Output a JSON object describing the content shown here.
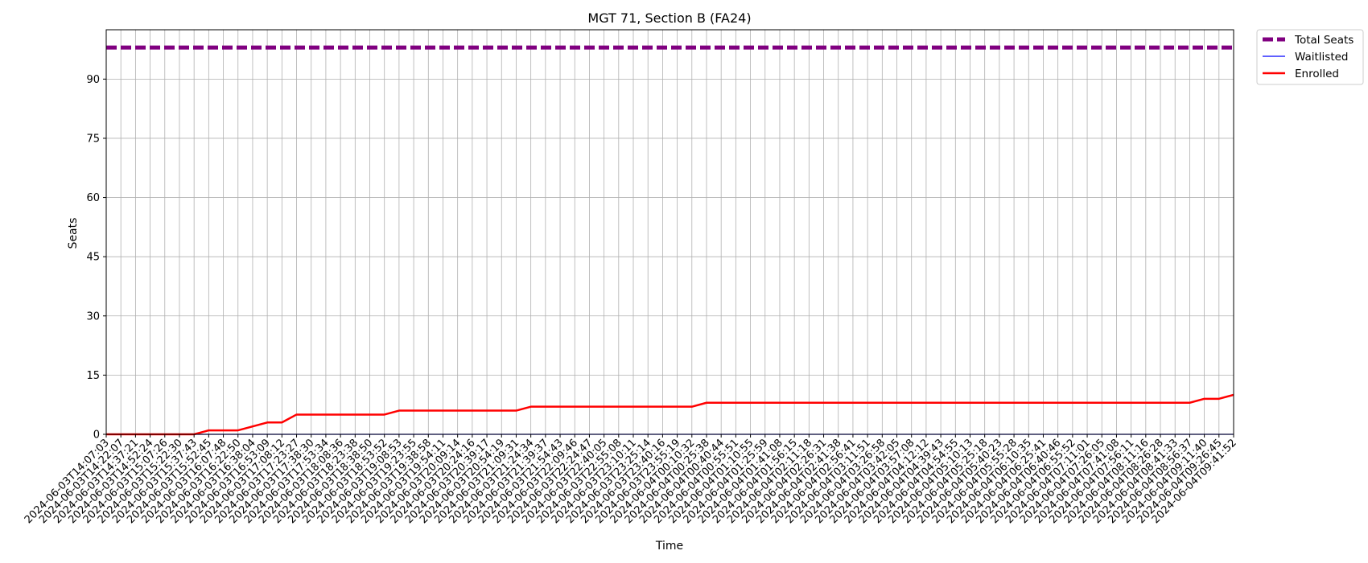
{
  "chart_data": {
    "type": "line",
    "title": "MGT 71, Section B (FA24)",
    "xlabel": "Time",
    "ylabel": "Seats",
    "ylim": [
      0,
      102.5
    ],
    "yticks": [
      0,
      15,
      30,
      45,
      60,
      75,
      90
    ],
    "grid": true,
    "legend_position": "outside-top-right",
    "x": [
      "2024-06-03T14:07:03",
      "2024-06-03T14:22:07",
      "2024-06-03T14:37:21",
      "2024-06-03T14:52:24",
      "2024-06-03T15:07:26",
      "2024-06-03T15:22:30",
      "2024-06-03T15:37:43",
      "2024-06-03T15:52:45",
      "2024-06-03T16:07:48",
      "2024-06-03T16:22:50",
      "2024-06-03T16:38:04",
      "2024-06-03T16:53:09",
      "2024-06-03T17:08:12",
      "2024-06-03T17:23:27",
      "2024-06-03T17:38:30",
      "2024-06-03T17:53:34",
      "2024-06-03T18:08:36",
      "2024-06-03T18:23:38",
      "2024-06-03T18:38:50",
      "2024-06-03T18:53:52",
      "2024-06-03T19:08:53",
      "2024-06-03T19:23:55",
      "2024-06-03T19:38:58",
      "2024-06-03T19:54:11",
      "2024-06-03T20:09:14",
      "2024-06-03T20:24:16",
      "2024-06-03T20:39:17",
      "2024-06-03T20:54:19",
      "2024-06-03T21:09:31",
      "2024-06-03T21:24:34",
      "2024-06-03T21:39:37",
      "2024-06-03T21:54:43",
      "2024-06-03T22:09:46",
      "2024-06-03T22:24:47",
      "2024-06-03T22:40:05",
      "2024-06-03T22:55:08",
      "2024-06-03T23:10:11",
      "2024-06-03T23:25:14",
      "2024-06-03T23:40:16",
      "2024-06-03T23:55:19",
      "2024-06-04T00:10:32",
      "2024-06-04T00:25:38",
      "2024-06-04T00:40:44",
      "2024-06-04T00:55:51",
      "2024-06-04T01:10:55",
      "2024-06-04T01:25:59",
      "2024-06-04T01:41:08",
      "2024-06-04T01:56:15",
      "2024-06-04T02:11:18",
      "2024-06-04T02:26:31",
      "2024-06-04T02:41:38",
      "2024-06-04T02:56:41",
      "2024-06-04T03:11:51",
      "2024-06-04T03:26:58",
      "2024-06-04T03:42:05",
      "2024-06-04T03:57:08",
      "2024-06-04T04:12:12",
      "2024-06-04T04:39:43",
      "2024-06-04T04:54:55",
      "2024-06-04T05:10:13",
      "2024-06-04T05:25:18",
      "2024-06-04T05:40:23",
      "2024-06-04T05:55:28",
      "2024-06-04T06:10:35",
      "2024-06-04T06:25:41",
      "2024-06-04T06:40:46",
      "2024-06-04T06:55:52",
      "2024-06-04T07:11:01",
      "2024-06-04T07:26:05",
      "2024-06-04T07:41:08",
      "2024-06-04T07:56:11",
      "2024-06-04T08:11:16",
      "2024-06-04T08:26:28",
      "2024-06-04T08:41:33",
      "2024-06-04T08:56:37",
      "2024-06-04T09:11:40",
      "2024-06-04T09:26:45",
      "2024-06-04T09:41:52"
    ],
    "series": [
      {
        "name": "Total Seats",
        "color": "#800080",
        "style": "dashed",
        "values": [
          98,
          98,
          98,
          98,
          98,
          98,
          98,
          98,
          98,
          98,
          98,
          98,
          98,
          98,
          98,
          98,
          98,
          98,
          98,
          98,
          98,
          98,
          98,
          98,
          98,
          98,
          98,
          98,
          98,
          98,
          98,
          98,
          98,
          98,
          98,
          98,
          98,
          98,
          98,
          98,
          98,
          98,
          98,
          98,
          98,
          98,
          98,
          98,
          98,
          98,
          98,
          98,
          98,
          98,
          98,
          98,
          98,
          98,
          98,
          98,
          98,
          98,
          98,
          98,
          98,
          98,
          98,
          98,
          98,
          98,
          98,
          98,
          98,
          98,
          98,
          98,
          98,
          98
        ]
      },
      {
        "name": "Waitlisted",
        "color": "#0000ff",
        "style": "solid",
        "values": [
          0,
          0,
          0,
          0,
          0,
          0,
          0,
          0,
          0,
          0,
          0,
          0,
          0,
          0,
          0,
          0,
          0,
          0,
          0,
          0,
          0,
          0,
          0,
          0,
          0,
          0,
          0,
          0,
          0,
          0,
          0,
          0,
          0,
          0,
          0,
          0,
          0,
          0,
          0,
          0,
          0,
          0,
          0,
          0,
          0,
          0,
          0,
          0,
          0,
          0,
          0,
          0,
          0,
          0,
          0,
          0,
          0,
          0,
          0,
          0,
          0,
          0,
          0,
          0,
          0,
          0,
          0,
          0,
          0,
          0,
          0,
          0,
          0,
          0,
          0,
          0,
          0,
          0
        ]
      },
      {
        "name": "Enrolled",
        "color": "#ff0000",
        "style": "solid",
        "values": [
          0,
          0,
          0,
          0,
          0,
          0,
          0,
          1,
          1,
          1,
          2,
          3,
          3,
          5,
          5,
          5,
          5,
          5,
          5,
          5,
          6,
          6,
          6,
          6,
          6,
          6,
          6,
          6,
          6,
          7,
          7,
          7,
          7,
          7,
          7,
          7,
          7,
          7,
          7,
          7,
          7,
          8,
          8,
          8,
          8,
          8,
          8,
          8,
          8,
          8,
          8,
          8,
          8,
          8,
          8,
          8,
          8,
          8,
          8,
          8,
          8,
          8,
          8,
          8,
          8,
          8,
          8,
          8,
          8,
          8,
          8,
          8,
          8,
          8,
          8,
          9,
          9,
          10
        ]
      }
    ]
  }
}
